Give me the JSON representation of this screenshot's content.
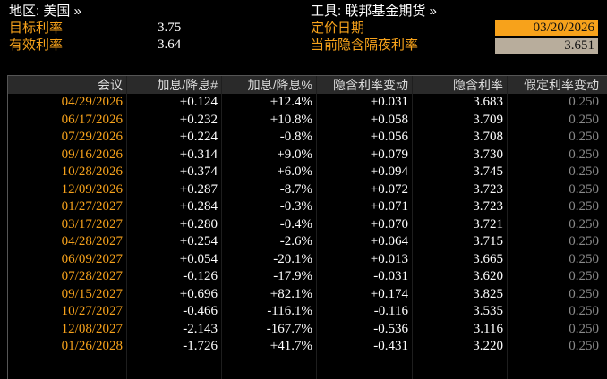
{
  "header": {
    "region": "地区: 美国 »",
    "instrument": "工具: 联邦基金期货 »",
    "target_rate_label": "目标利率",
    "target_rate": "3.75",
    "effective_rate_label": "有效利率",
    "effective_rate": "3.64",
    "pricing_date_label": "定价日期",
    "pricing_date": "03/20/2026",
    "implied_overnight_label": "当前隐含隔夜利率",
    "implied_overnight": "3.651"
  },
  "table": {
    "columns": [
      "会议",
      "加息/降息#",
      "加息/降息%",
      "隐含利率变动",
      "隐含利率",
      "假定利率变动"
    ],
    "rows": [
      [
        "04/29/2026",
        "+0.124",
        "+12.4%",
        "+0.031",
        "3.683",
        "0.250"
      ],
      [
        "06/17/2026",
        "+0.232",
        "+10.8%",
        "+0.058",
        "3.709",
        "0.250"
      ],
      [
        "07/29/2026",
        "+0.224",
        "-0.8%",
        "+0.056",
        "3.708",
        "0.250"
      ],
      [
        "09/16/2026",
        "+0.314",
        "+9.0%",
        "+0.079",
        "3.730",
        "0.250"
      ],
      [
        "10/28/2026",
        "+0.374",
        "+6.0%",
        "+0.094",
        "3.745",
        "0.250"
      ],
      [
        "12/09/2026",
        "+0.287",
        "-8.7%",
        "+0.072",
        "3.723",
        "0.250"
      ],
      [
        "01/27/2027",
        "+0.284",
        "-0.3%",
        "+0.071",
        "3.723",
        "0.250"
      ],
      [
        "03/17/2027",
        "+0.280",
        "-0.4%",
        "+0.070",
        "3.721",
        "0.250"
      ],
      [
        "04/28/2027",
        "+0.254",
        "-2.6%",
        "+0.064",
        "3.715",
        "0.250"
      ],
      [
        "06/09/2027",
        "+0.054",
        "-20.1%",
        "+0.013",
        "3.665",
        "0.250"
      ],
      [
        "07/28/2027",
        "-0.126",
        "-17.9%",
        "-0.031",
        "3.620",
        "0.250"
      ],
      [
        "09/15/2027",
        "+0.696",
        "+82.1%",
        "+0.174",
        "3.825",
        "0.250"
      ],
      [
        "10/27/2027",
        "-0.466",
        "-116.1%",
        "-0.116",
        "3.535",
        "0.250"
      ],
      [
        "12/08/2027",
        "-2.143",
        "-167.7%",
        "-0.536",
        "3.116",
        "0.250"
      ],
      [
        "01/26/2028",
        "-1.726",
        "+41.7%",
        "-0.431",
        "3.220",
        "0.250"
      ]
    ]
  }
}
